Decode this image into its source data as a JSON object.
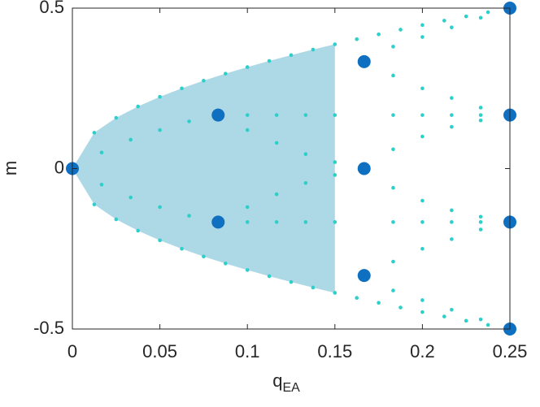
{
  "chart_data": {
    "type": "scatter",
    "xlabel": "q",
    "xlabel_sub": "EA",
    "ylabel": "m",
    "xlim": [
      0,
      0.25
    ],
    "xticks": [
      0,
      0.05,
      0.1,
      0.15,
      0.2,
      0.25
    ],
    "ylim": [
      -0.5,
      0.5
    ],
    "yticks": [
      -0.5,
      0,
      0.5
    ],
    "grid": false,
    "series": [
      {
        "marker": "region",
        "color": "#add8e6",
        "x": [
          0,
          0.0125,
          0.025,
          0.0375,
          0.05,
          0.0625,
          0.075,
          0.0875,
          0.1,
          0.1125,
          0.125,
          0.1375,
          0.15
        ],
        "values": [
          0,
          0.1118,
          0.1581,
          0.1936,
          0.2236,
          0.25,
          0.2739,
          0.2958,
          0.3162,
          0.3354,
          0.3536,
          0.3708,
          0.3873
        ],
        "lower": [
          0,
          -0.1118,
          -0.1581,
          -0.1936,
          -0.2236,
          -0.25,
          -0.2739,
          -0.2958,
          -0.3162,
          -0.3354,
          -0.3536,
          -0.3708,
          -0.3873
        ]
      },
      {
        "marker": "small",
        "color": "#2ccfc9",
        "x": [
          0.0125,
          0.025,
          0.0375,
          0.05,
          0.0625,
          0.075,
          0.0875,
          0.1,
          0.1125,
          0.125,
          0.1375,
          0.15,
          0.1625,
          0.175,
          0.1875,
          0.2,
          0.2125,
          0.225,
          0.2375,
          0.0125,
          0.025,
          0.0375,
          0.05,
          0.0625,
          0.075,
          0.0875,
          0.1,
          0.1125,
          0.125,
          0.1375,
          0.15,
          0.1625,
          0.175,
          0.1875,
          0.2,
          0.2125,
          0.225,
          0.2375,
          0.0167,
          0.0333,
          0.05,
          0.0667,
          0.0167,
          0.0333,
          0.05,
          0.0667,
          0.1,
          0.1167,
          0.1333,
          0.15,
          0.1833,
          0.2,
          0.2167,
          0.2333,
          0.1,
          0.1167,
          0.1333,
          0.15,
          0.1833,
          0.2,
          0.2167,
          0.2333,
          0.1,
          0.1167,
          0.1333,
          0.15,
          0.1,
          0.1167,
          0.1333,
          0.15,
          0.1833,
          0.2,
          0.2167,
          0.2333,
          0.1833,
          0.2,
          0.2167,
          0.2333,
          0.1833,
          0.2,
          0.2167,
          0.2333,
          0.1833,
          0.2,
          0.2167,
          0.2333,
          0.1833,
          0.2,
          0.2167,
          0.2333,
          0.1833,
          0.2,
          0.2167,
          0.2333
        ],
        "values": [
          0.1118,
          0.1581,
          0.1936,
          0.2236,
          0.25,
          0.2739,
          0.2958,
          0.3162,
          0.3354,
          0.3536,
          0.3708,
          0.3873,
          0.4031,
          0.4183,
          0.433,
          0.4472,
          0.461,
          0.4743,
          0.4873,
          -0.1118,
          -0.1581,
          -0.1936,
          -0.2236,
          -0.25,
          -0.2739,
          -0.2958,
          -0.3162,
          -0.3354,
          -0.3536,
          -0.3708,
          -0.3873,
          -0.4031,
          -0.4183,
          -0.433,
          -0.4472,
          -0.461,
          -0.4743,
          -0.4873,
          0.05,
          0.09,
          0.12,
          0.147,
          -0.05,
          -0.09,
          -0.12,
          -0.147,
          0.1667,
          0.1667,
          0.1667,
          0.1667,
          0.1667,
          0.1667,
          0.1667,
          0.1667,
          -0.1667,
          -0.1667,
          -0.1667,
          -0.1667,
          -0.1667,
          -0.1667,
          -0.1667,
          -0.1667,
          0.12,
          0.08,
          0.045,
          0.02,
          -0.12,
          -0.08,
          -0.045,
          -0.02,
          0.38,
          0.41,
          0.44,
          0.47,
          0.29,
          0.25,
          0.22,
          0.19,
          -0.38,
          -0.41,
          -0.44,
          -0.47,
          -0.29,
          -0.25,
          -0.22,
          -0.19,
          0.06,
          0.1,
          0.13,
          0.15,
          -0.06,
          -0.1,
          -0.13,
          -0.15
        ]
      },
      {
        "marker": "large",
        "color": "#0f6fc0",
        "x": [
          0,
          0.0833,
          0.0833,
          0.1667,
          0.1667,
          0.1667,
          0.25,
          0.25,
          0.25,
          0.25
        ],
        "values": [
          0,
          0.1667,
          -0.1667,
          0.3333,
          0,
          -0.3333,
          0.5,
          0.1667,
          -0.1667,
          -0.5
        ]
      }
    ]
  }
}
